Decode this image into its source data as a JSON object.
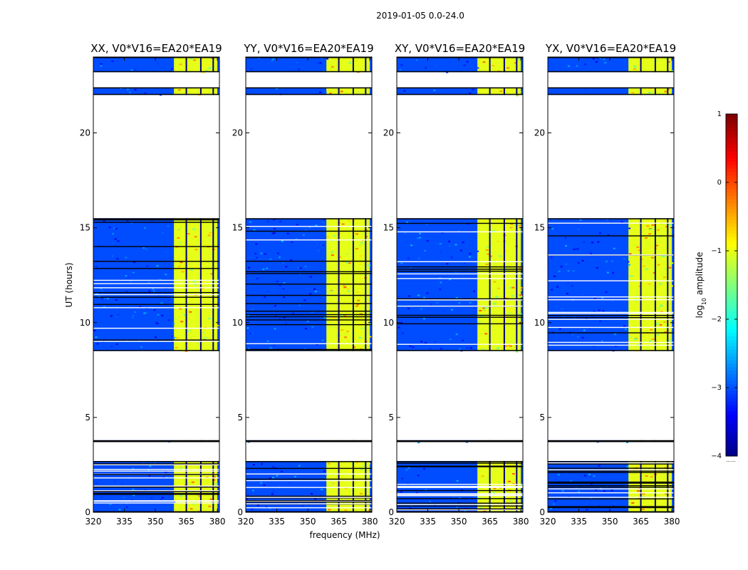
{
  "suptitle": "2019-01-05 0.0-24.0",
  "xlabel": "frequency (MHz)",
  "ylabel": "UT (hours)",
  "colorbar": {
    "label": "log$_{10}$ amplitude",
    "label_prefix": "log",
    "label_sub": "10",
    "label_suffix": " amplitude",
    "ticks": [
      1,
      0,
      -1,
      -2,
      -3,
      -4
    ],
    "tick_labels": [
      "1",
      "0",
      "−1",
      "−2",
      "−3",
      "−4"
    ],
    "range": [
      -4,
      1
    ],
    "colormap": "jet",
    "colors": [
      "#00007f",
      "#0000ff",
      "#007fff",
      "#00ffff",
      "#7fff7f",
      "#ffff00",
      "#ff7f00",
      "#ff0000",
      "#7f0000"
    ],
    "footnote": "......"
  },
  "chart_data": {
    "type": "heatmap",
    "title": "2019-01-05 0.0-24.0",
    "xlabel": "frequency (MHz)",
    "ylabel": "UT (hours)",
    "xlim": [
      320,
      381
    ],
    "ylim": [
      0,
      24
    ],
    "xticks": [
      320,
      335,
      350,
      365,
      380
    ],
    "yticks": [
      0,
      5,
      10,
      15,
      20
    ],
    "panels": [
      {
        "title": "XX, V0*V16=EA20*EA19",
        "polarization": "XX"
      },
      {
        "title": "YY, V0*V16=EA20*EA19",
        "polarization": "YY"
      },
      {
        "title": "XY, V0*V16=EA20*EA19",
        "polarization": "XY"
      },
      {
        "title": "YX, V0*V16=EA20*EA19",
        "polarization": "YX"
      }
    ],
    "data_time_ranges_hours": [
      [
        0,
        2.7
      ],
      [
        3.7,
        3.8
      ],
      [
        8.5,
        15.5
      ],
      [
        22,
        22.4
      ],
      [
        23.2,
        24
      ]
    ],
    "bright_band_MHz": [
      359,
      380
    ],
    "bright_band_level_log10": -1.0,
    "background_level_log10": -3.0,
    "flagged_channels_MHz": [
      365,
      372,
      378
    ]
  }
}
